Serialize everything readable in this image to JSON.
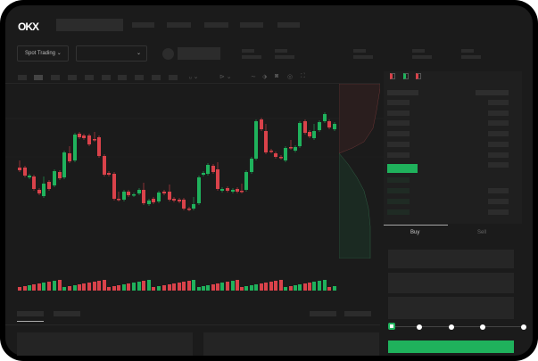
{
  "header": {
    "logo": "OKX"
  },
  "toolbar": {
    "market_selector": "Spot Trading",
    "pair_selector": ""
  },
  "trade_panel": {
    "tabs": [
      {
        "label": "Buy",
        "active": true
      },
      {
        "label": "Sell",
        "active": false
      }
    ]
  },
  "colors": {
    "up": "#1fb25c",
    "down": "#d9424a",
    "background": "#1b1b1b"
  },
  "icons": [
    "orderbook-both-icon",
    "orderbook-buy-icon",
    "orderbook-sell-icon",
    "chevron-down-icon",
    "indicator-icon",
    "drawing-icon",
    "camera-icon",
    "settings-icon",
    "fullscreen-icon"
  ]
}
